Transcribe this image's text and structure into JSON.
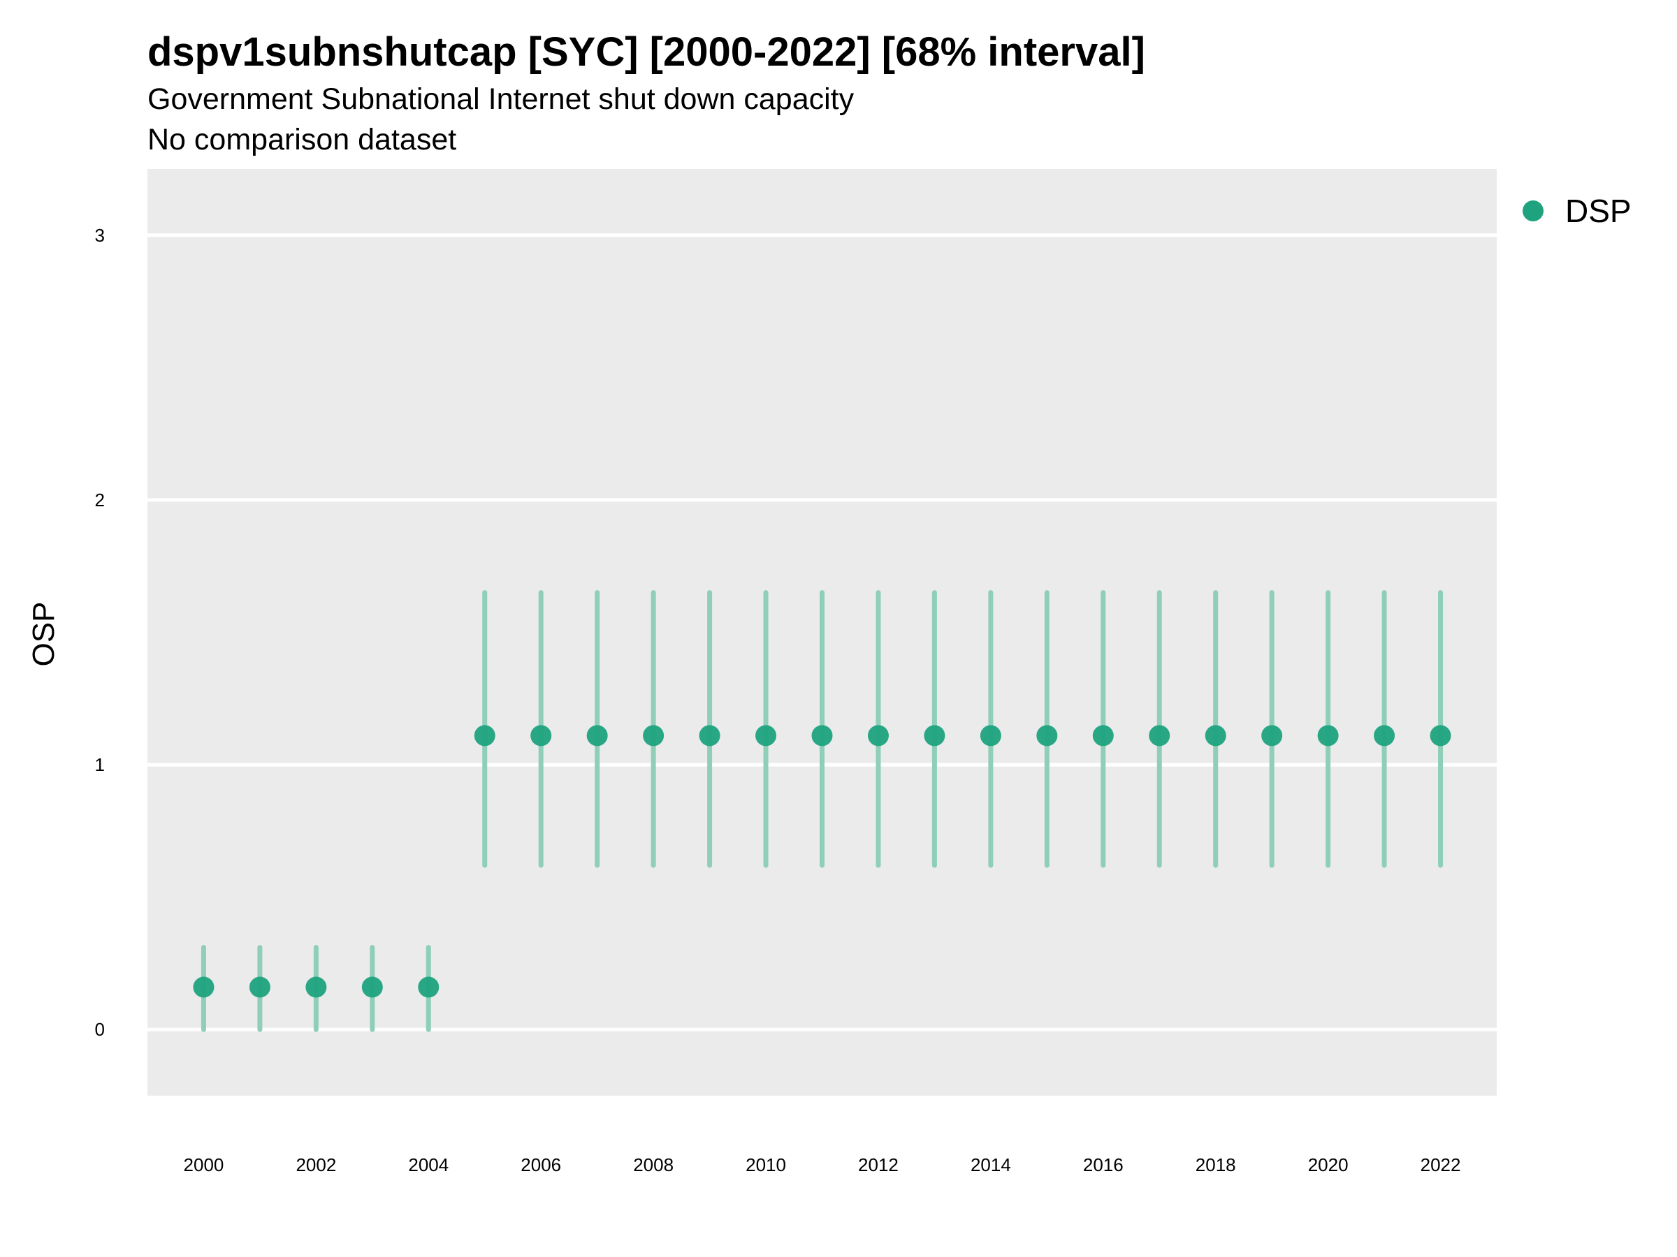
{
  "chart_data": {
    "type": "scatter",
    "title": "dspv1subnshutcap [SYC] [2000-2022] [68% interval]",
    "subtitle": "Government Subnational Internet shut down capacity",
    "subtitle2": "No comparison dataset",
    "xlabel": "",
    "ylabel": "OSP",
    "xlim": [
      1999,
      2023
    ],
    "ylim": [
      -0.25,
      3.25
    ],
    "x_ticks": [
      2000,
      2002,
      2004,
      2006,
      2008,
      2010,
      2012,
      2014,
      2016,
      2018,
      2020,
      2022
    ],
    "y_ticks": [
      0,
      1,
      2,
      3
    ],
    "grid": true,
    "legend_position": "right",
    "series": [
      {
        "name": "DSP",
        "color": "#1fa37e",
        "interval_color": "#8fcfb9",
        "points": [
          {
            "x": 2000,
            "y": 0.16,
            "low": 0.0,
            "high": 0.31
          },
          {
            "x": 2001,
            "y": 0.16,
            "low": 0.0,
            "high": 0.31
          },
          {
            "x": 2002,
            "y": 0.16,
            "low": 0.0,
            "high": 0.31
          },
          {
            "x": 2003,
            "y": 0.16,
            "low": 0.0,
            "high": 0.31
          },
          {
            "x": 2004,
            "y": 0.16,
            "low": 0.0,
            "high": 0.31
          },
          {
            "x": 2005,
            "y": 1.11,
            "low": 0.62,
            "high": 1.65
          },
          {
            "x": 2006,
            "y": 1.11,
            "low": 0.62,
            "high": 1.65
          },
          {
            "x": 2007,
            "y": 1.11,
            "low": 0.62,
            "high": 1.65
          },
          {
            "x": 2008,
            "y": 1.11,
            "low": 0.62,
            "high": 1.65
          },
          {
            "x": 2009,
            "y": 1.11,
            "low": 0.62,
            "high": 1.65
          },
          {
            "x": 2010,
            "y": 1.11,
            "low": 0.62,
            "high": 1.65
          },
          {
            "x": 2011,
            "y": 1.11,
            "low": 0.62,
            "high": 1.65
          },
          {
            "x": 2012,
            "y": 1.11,
            "low": 0.62,
            "high": 1.65
          },
          {
            "x": 2013,
            "y": 1.11,
            "low": 0.62,
            "high": 1.65
          },
          {
            "x": 2014,
            "y": 1.11,
            "low": 0.62,
            "high": 1.65
          },
          {
            "x": 2015,
            "y": 1.11,
            "low": 0.62,
            "high": 1.65
          },
          {
            "x": 2016,
            "y": 1.11,
            "low": 0.62,
            "high": 1.65
          },
          {
            "x": 2017,
            "y": 1.11,
            "low": 0.62,
            "high": 1.65
          },
          {
            "x": 2018,
            "y": 1.11,
            "low": 0.62,
            "high": 1.65
          },
          {
            "x": 2019,
            "y": 1.11,
            "low": 0.62,
            "high": 1.65
          },
          {
            "x": 2020,
            "y": 1.11,
            "low": 0.62,
            "high": 1.65
          },
          {
            "x": 2021,
            "y": 1.11,
            "low": 0.62,
            "high": 1.65
          },
          {
            "x": 2022,
            "y": 1.11,
            "low": 0.62,
            "high": 1.65
          }
        ]
      }
    ]
  },
  "colors": {
    "panel_background": "#ebebeb",
    "gridline": "#ffffff"
  }
}
